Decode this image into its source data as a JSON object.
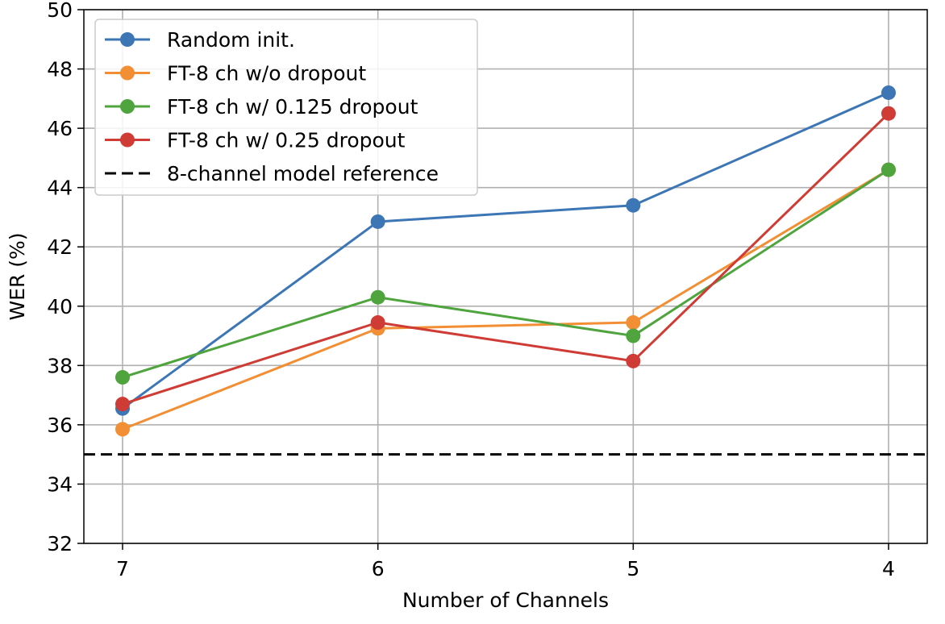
{
  "chart_data": {
    "type": "line",
    "title": "",
    "xlabel": "Number of Channels",
    "ylabel": "WER (%)",
    "categories": [
      "7",
      "6",
      "5",
      "4"
    ],
    "ylim": [
      32,
      50
    ],
    "yticks": [
      "32",
      "34",
      "36",
      "38",
      "40",
      "42",
      "44",
      "46",
      "48",
      "50"
    ],
    "grid": true,
    "legend_position": "upper-left",
    "series": [
      {
        "name": "Random init.",
        "color": "#3d76b5",
        "values": [
          36.55,
          42.85,
          43.4,
          47.2
        ]
      },
      {
        "name": "FT-8 ch w/o dropout",
        "color": "#f28e33",
        "values": [
          35.85,
          39.25,
          39.45,
          44.6
        ]
      },
      {
        "name": "FT-8 ch w/ 0.125 dropout",
        "color": "#4fa43d",
        "values": [
          37.6,
          40.3,
          39.0,
          44.6
        ]
      },
      {
        "name": "FT-8 ch w/ 0.25 dropout",
        "color": "#cf3b35",
        "values": [
          36.7,
          39.45,
          38.15,
          46.5
        ]
      }
    ],
    "reference": {
      "name": "8-channel model reference",
      "value": 35.0,
      "color": "#000000",
      "style": "dashed"
    }
  }
}
